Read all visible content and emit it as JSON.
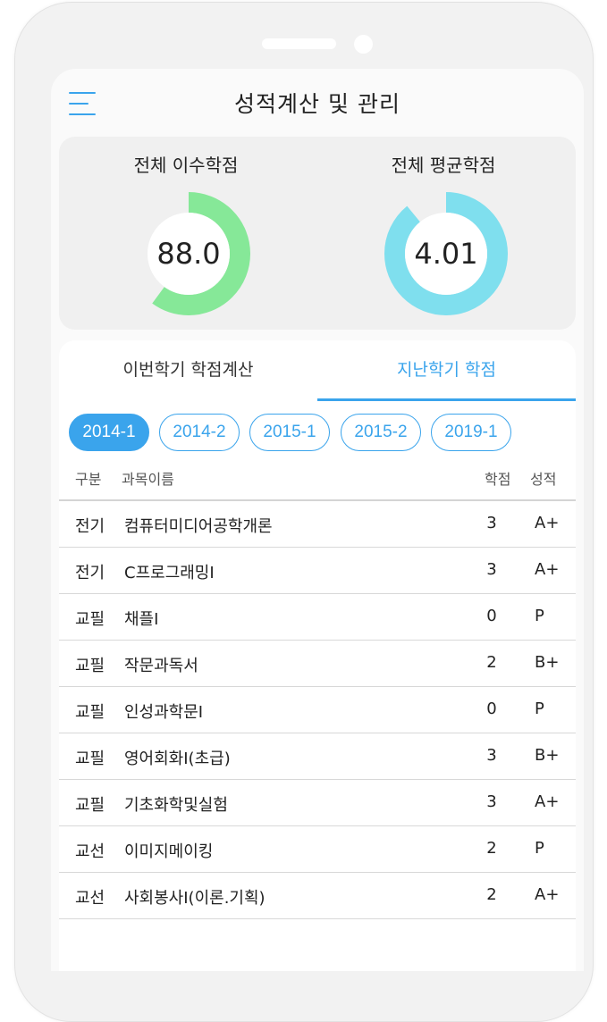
{
  "header": {
    "title": "성적계산 및 관리"
  },
  "summary": {
    "total_credits": {
      "label": "전체 이수학점",
      "value": "88.0",
      "color": "#86e898",
      "fill_fraction": 0.6
    },
    "average_grade": {
      "label": "전체 평균학점",
      "value": "4.01",
      "color": "#7fdfee",
      "fill_fraction": 0.89
    }
  },
  "tabs": [
    {
      "label": "이번학기 학점계산",
      "active": false
    },
    {
      "label": "지난학기 학점",
      "active": true
    }
  ],
  "semesters": [
    "2014-1",
    "2014-2",
    "2015-1",
    "2015-2",
    "2019-1"
  ],
  "selected_semester": "2014-1",
  "table": {
    "headers": {
      "type": "구분",
      "name": "과목이름",
      "credit": "학점",
      "grade": "성적"
    },
    "rows": [
      {
        "type": "전기",
        "name": "컴퓨터미디어공학개론",
        "credit": "3",
        "grade": "A+"
      },
      {
        "type": "전기",
        "name": "C프로그래밍I",
        "credit": "3",
        "grade": "A+"
      },
      {
        "type": "교필",
        "name": "채플I",
        "credit": "0",
        "grade": "P"
      },
      {
        "type": "교필",
        "name": "작문과독서",
        "credit": "2",
        "grade": "B+"
      },
      {
        "type": "교필",
        "name": "인성과학문I",
        "credit": "0",
        "grade": "P"
      },
      {
        "type": "교필",
        "name": "영어회화I(초급)",
        "credit": "3",
        "grade": "B+"
      },
      {
        "type": "교필",
        "name": "기초화학및실험",
        "credit": "3",
        "grade": "A+"
      },
      {
        "type": "교선",
        "name": "이미지메이킹",
        "credit": "2",
        "grade": "P"
      },
      {
        "type": "교선",
        "name": "사회봉사I(이론.기획)",
        "credit": "2",
        "grade": "A+"
      }
    ]
  },
  "icons": {
    "menu": "hamburger-menu-icon"
  },
  "colors": {
    "accent": "#3aa4ec"
  }
}
